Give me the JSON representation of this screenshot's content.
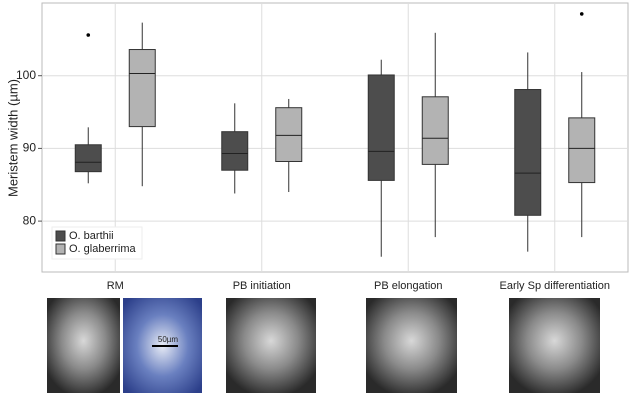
{
  "chart_data": {
    "type": "box",
    "y_label": "Meristem width (µm)",
    "categories": [
      "RM",
      "PB initiation",
      "PB elongation",
      "Early Sp differentiation"
    ],
    "ylim": [
      73,
      110
    ],
    "yticks": [
      80,
      90,
      100
    ],
    "grid": true,
    "legend": "bottom-left",
    "series": [
      {
        "name": "O. barthii",
        "color": "#4d4d4d",
        "boxes": [
          {
            "min": 85.2,
            "q1": 86.8,
            "median": 88.1,
            "q3": 90.5,
            "max": 92.9,
            "outliers": [
              105.6
            ]
          },
          {
            "min": 83.8,
            "q1": 87.0,
            "median": 89.3,
            "q3": 92.3,
            "max": 96.2,
            "outliers": []
          },
          {
            "min": 75.1,
            "q1": 85.6,
            "median": 89.6,
            "q3": 100.1,
            "max": 102.2,
            "outliers": []
          },
          {
            "min": 75.8,
            "q1": 80.8,
            "median": 86.6,
            "q3": 98.1,
            "max": 103.2,
            "outliers": []
          }
        ]
      },
      {
        "name": "O. glaberrima",
        "color": "#b3b3b3",
        "boxes": [
          {
            "min": 84.8,
            "q1": 93.0,
            "median": 100.3,
            "q3": 103.6,
            "max": 107.3,
            "outliers": []
          },
          {
            "min": 84.0,
            "q1": 88.2,
            "median": 91.8,
            "q3": 95.6,
            "max": 96.8,
            "outliers": []
          },
          {
            "min": 77.8,
            "q1": 87.8,
            "median": 91.4,
            "q3": 97.1,
            "max": 105.9,
            "outliers": []
          },
          {
            "min": 77.8,
            "q1": 85.3,
            "median": 90.0,
            "q3": 94.2,
            "max": 100.5,
            "outliers": [
              108.5
            ]
          }
        ]
      }
    ]
  },
  "images": {
    "scale_label": "50µm"
  }
}
